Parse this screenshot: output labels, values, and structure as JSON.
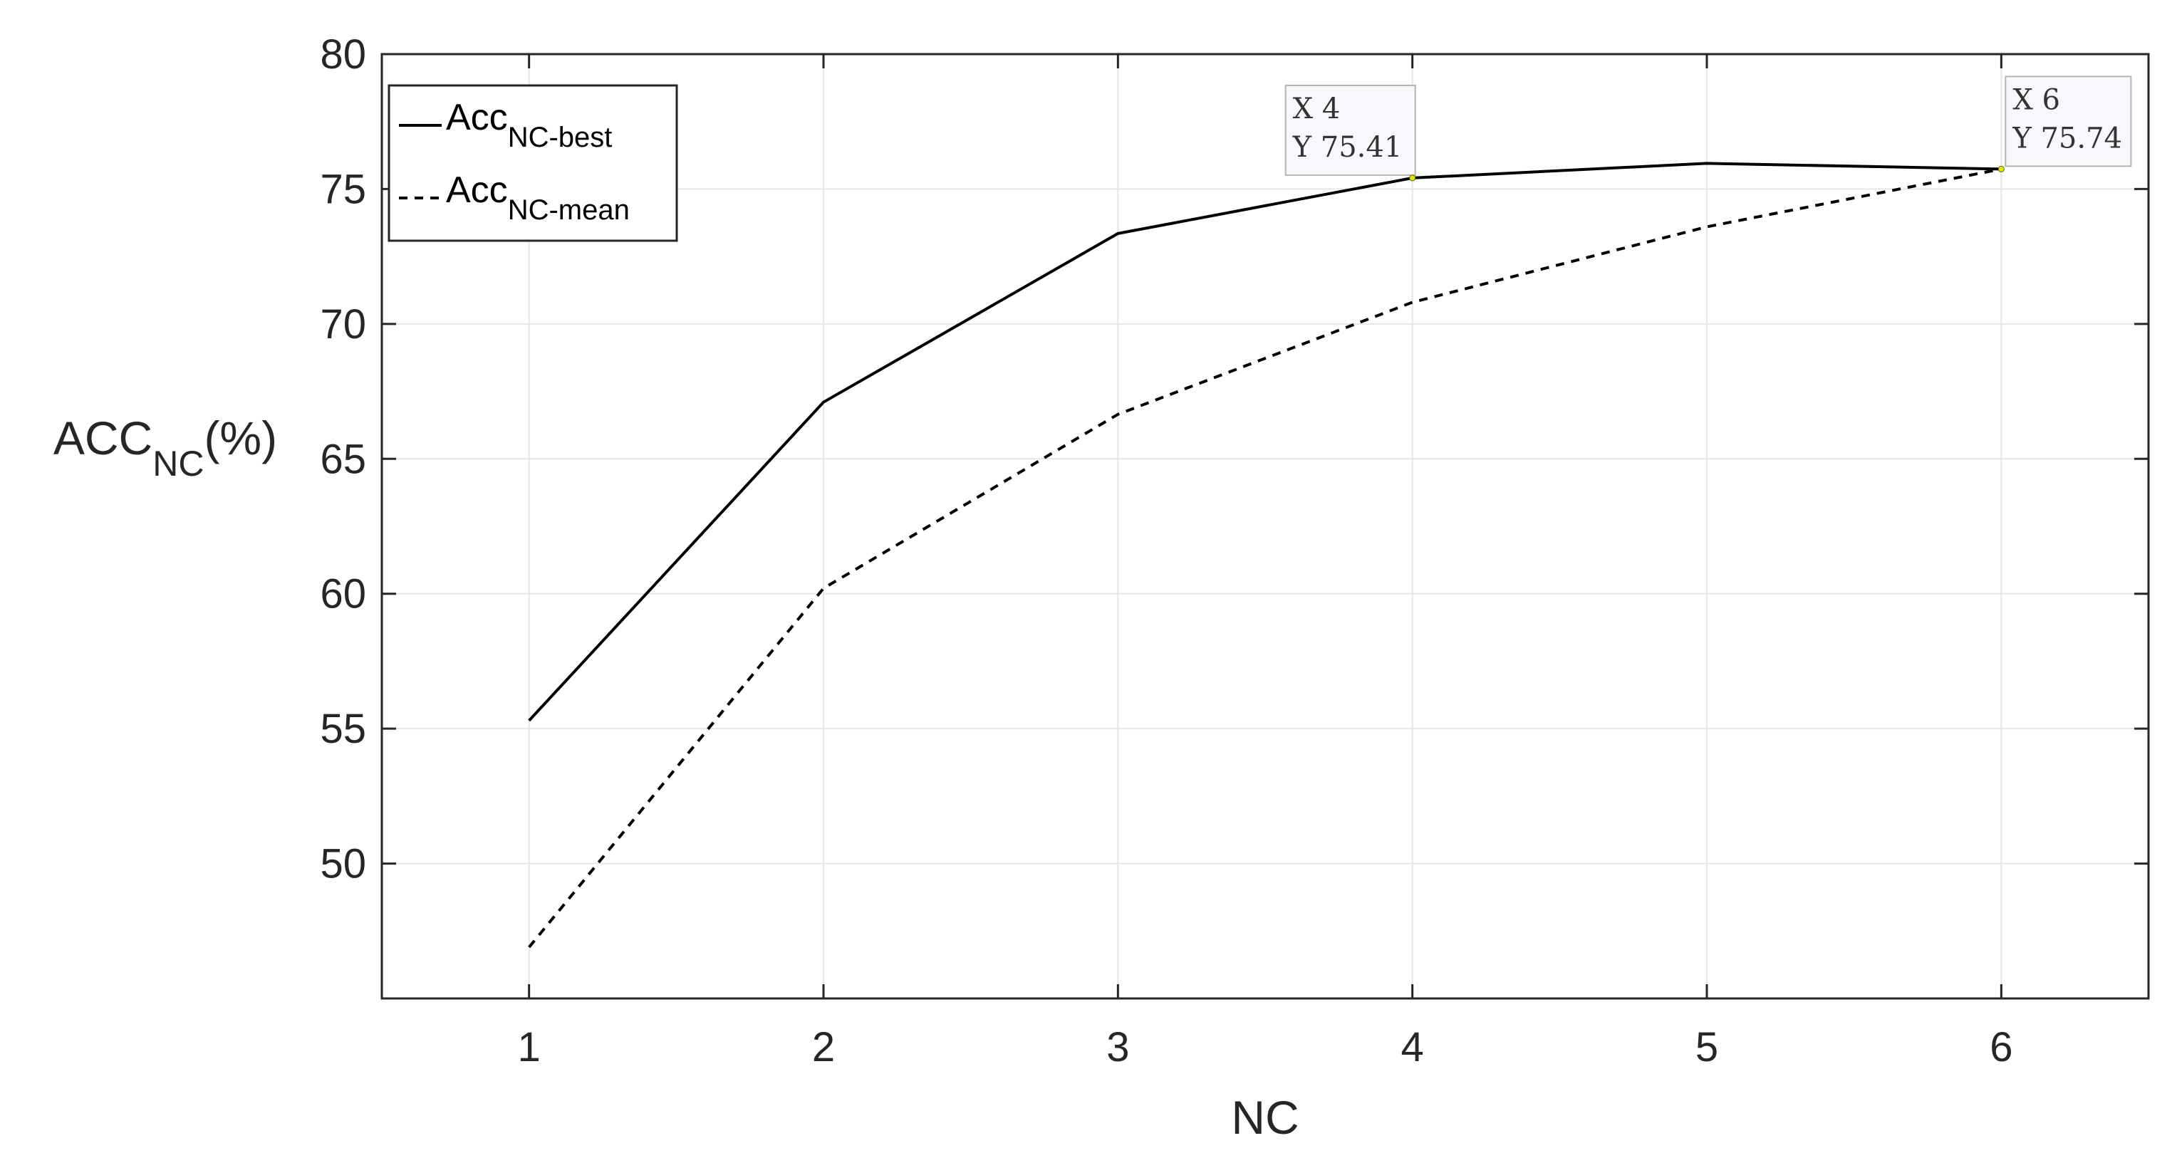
{
  "chart_data": {
    "type": "line",
    "title": "",
    "xlabel": "NC",
    "ylabel": {
      "main": "ACC",
      "sub": "NC",
      "suffix": "(%)"
    },
    "x": [
      1,
      2,
      3,
      4,
      5,
      6
    ],
    "xticks": [
      "1",
      "2",
      "3",
      "4",
      "5",
      "6"
    ],
    "xlim": [
      0.5,
      6.5
    ],
    "yticks": [
      "50",
      "55",
      "60",
      "65",
      "70",
      "75",
      "80"
    ],
    "ylim": [
      45,
      80
    ],
    "grid": true,
    "legend_position": "top-left",
    "series": [
      {
        "name": "Acc",
        "name_sub": "NC-best",
        "style": "solid",
        "color": "#000000",
        "values": [
          55.3,
          67.1,
          73.35,
          75.41,
          75.95,
          75.74
        ]
      },
      {
        "name": "Acc",
        "name_sub": "NC-mean",
        "style": "dashed",
        "color": "#000000",
        "values": [
          46.9,
          60.2,
          66.65,
          70.8,
          73.6,
          75.74
        ]
      }
    ],
    "datatips": [
      {
        "series": 0,
        "x": 4,
        "y": 75.41,
        "x_text": "X 4",
        "y_text": "Y 75.41"
      },
      {
        "series": 1,
        "x": 6,
        "y": 75.74,
        "x_text": "X 6",
        "y_text": "Y 75.74"
      }
    ],
    "colors": {
      "axis": "#262626",
      "grid": "#e6e6e6",
      "tip_bg": "#f8f8fc",
      "tip_border": "#b4b4b4",
      "tip_marker": "#e6e600"
    }
  }
}
